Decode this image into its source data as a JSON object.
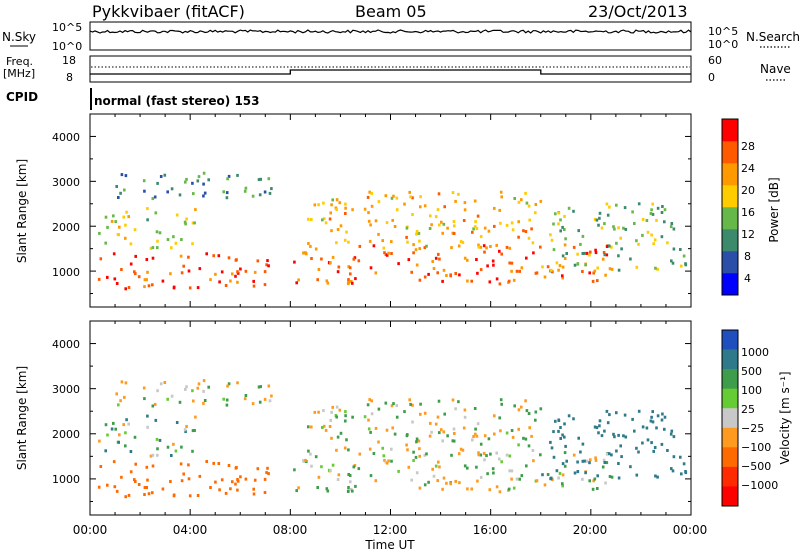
{
  "header": {
    "station": "Pykkvibaer (fitACF)",
    "beam": "Beam 05",
    "date": "23/Oct/2013"
  },
  "noise_panel": {
    "left_label": "N.Sky",
    "right_label": "N.Search",
    "y_ticks_left": [
      "10^5",
      "10^0"
    ],
    "y_ticks_right": [
      "10^5",
      "10^0"
    ]
  },
  "freq_panel": {
    "left_label_top": "Freq.",
    "left_label_bottom": "[MHz]",
    "right_label": "Nave",
    "y_ticks_left": [
      "18",
      "8"
    ],
    "y_ticks_right": [
      "60",
      "0"
    ]
  },
  "cpid": {
    "label": "CPID",
    "text": "normal (fast stereo) 153"
  },
  "power_panel": {
    "ylabel": "Slant Range [km]",
    "y_ticks": [
      "1000",
      "2000",
      "3000",
      "4000"
    ],
    "colorbar_label": "Power [dB]",
    "colorbar_ticks": [
      "28",
      "24",
      "20",
      "16",
      "12",
      "8",
      "4"
    ],
    "colors": [
      "#0000ff",
      "#2b4ea8",
      "#3b8a6c",
      "#66b848",
      "#ffcc00",
      "#ff9900",
      "#ff5a00",
      "#ff0000"
    ]
  },
  "velocity_panel": {
    "ylabel": "Slant Range [km]",
    "y_ticks": [
      "1000",
      "2000",
      "3000",
      "4000"
    ],
    "colorbar_label": "Velocity [m s⁻¹]",
    "colorbar_ticks": [
      "1000",
      "500",
      "100",
      "25",
      "−25",
      "−100",
      "−500",
      "−1000"
    ],
    "colors": [
      "#1f4fbf",
      "#2f7a8a",
      "#3e9d4a",
      "#66cc33",
      "#c8c8c8",
      "#ff9a20",
      "#ff6a00",
      "#ff2a00",
      "#ff0000"
    ]
  },
  "x_axis": {
    "label": "Time UT",
    "ticks": [
      "00:00",
      "04:00",
      "08:00",
      "12:00",
      "16:00",
      "20:00",
      "00:00"
    ]
  },
  "chart_data": {
    "type": "heatmap",
    "title": "Pykkvibaer (fitACF)  Beam 05  23/Oct/2013",
    "x_range_hours": [
      0,
      24
    ],
    "y_range_km": [
      200,
      4500
    ],
    "freq_mhz_segments": [
      {
        "from": 0,
        "to": 8,
        "value": 10
      },
      {
        "from": 8,
        "to": 18,
        "value": 12
      },
      {
        "from": 18,
        "to": 24,
        "value": 10
      }
    ],
    "nave_level": 20,
    "backscatter_regions": [
      {
        "t0": 0.2,
        "t1": 7.2,
        "r0": 600,
        "r1": 1400,
        "power": 27,
        "velocity": -300
      },
      {
        "t0": 0.3,
        "t1": 4.2,
        "r0": 1500,
        "r1": 2400,
        "power": 16,
        "velocity": 40
      },
      {
        "t0": 1.0,
        "t1": 7.5,
        "r0": 2600,
        "r1": 3200,
        "power": 10,
        "velocity": 0
      },
      {
        "t0": 8.0,
        "t1": 21.0,
        "r0": 700,
        "r1": 1600,
        "power": 26,
        "velocity": 0
      },
      {
        "t0": 8.5,
        "t1": 18.0,
        "r0": 1500,
        "r1": 2800,
        "power": 20,
        "velocity": 0
      },
      {
        "t0": 18.0,
        "t1": 23.8,
        "r0": 1000,
        "r1": 2500,
        "power": 14,
        "velocity": 200
      }
    ]
  }
}
